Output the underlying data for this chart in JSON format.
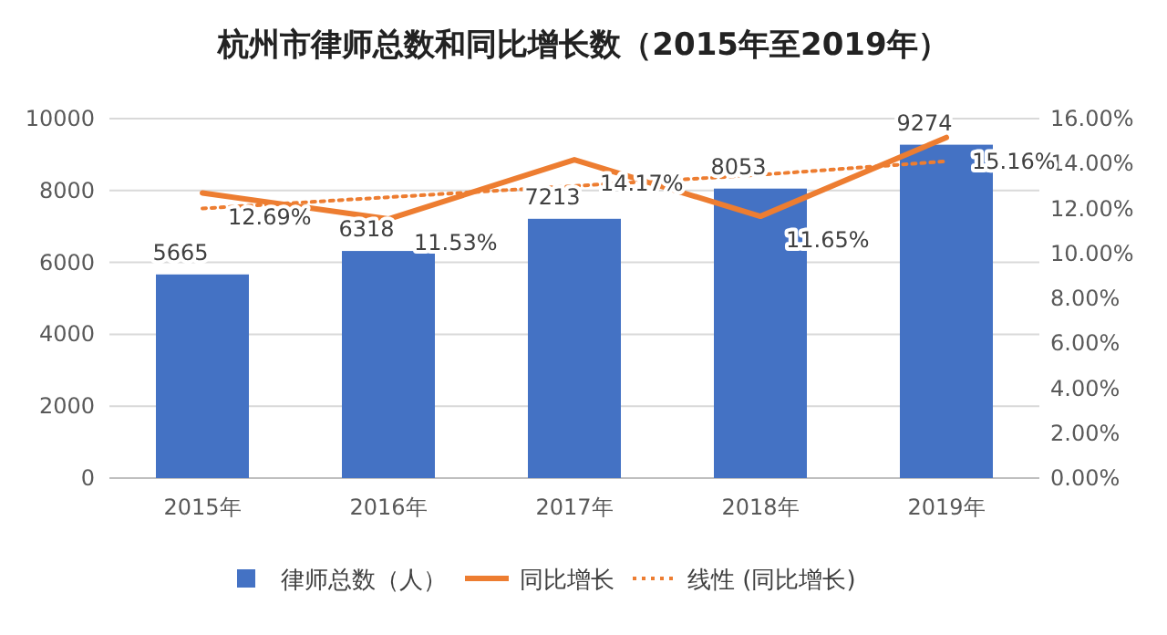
{
  "chart_data": {
    "type": "bar",
    "title": "杭州市律师总数和同比增长数（2015年至2019年）",
    "categories": [
      "2015年",
      "2016年",
      "2017年",
      "2018年",
      "2019年"
    ],
    "series": [
      {
        "name": "律师总数（人）",
        "color": "#4472c4",
        "values": [
          5665,
          6318,
          7213,
          8053,
          9274
        ],
        "value_labels": [
          "5665",
          "6318",
          "7213",
          "8053",
          "9274"
        ]
      },
      {
        "name": "同比增长",
        "type": "line",
        "axis": "y2",
        "color": "#ed7d31",
        "values": [
          12.69,
          11.53,
          14.17,
          11.65,
          15.16
        ],
        "value_labels": [
          "12.69%",
          "11.53%",
          "14.17%",
          "11.65%",
          "15.16%"
        ]
      },
      {
        "name": "线性 (同比增长)",
        "type": "line",
        "axis": "y2",
        "line_style": "dotted",
        "color": "#ed7d31",
        "values": [
          12.0,
          12.5,
          13.0,
          13.5,
          14.1
        ]
      }
    ],
    "ylim": [
      0,
      10000
    ],
    "yticks": [
      0,
      2000,
      4000,
      6000,
      8000,
      10000
    ],
    "y2lim": [
      0,
      16
    ],
    "y2ticks": [
      {
        "value": 0,
        "label": "0.00%"
      },
      {
        "value": 2,
        "label": "2.00%"
      },
      {
        "value": 4,
        "label": "4.00%"
      },
      {
        "value": 6,
        "label": "6.00%"
      },
      {
        "value": 8,
        "label": "8.00%"
      },
      {
        "value": 10,
        "label": "10.00%"
      },
      {
        "value": 12,
        "label": "12.00%"
      },
      {
        "value": 14,
        "label": "14.00%"
      },
      {
        "value": 16,
        "label": "16.00%"
      }
    ],
    "grid": "y",
    "legend": "bottom"
  }
}
